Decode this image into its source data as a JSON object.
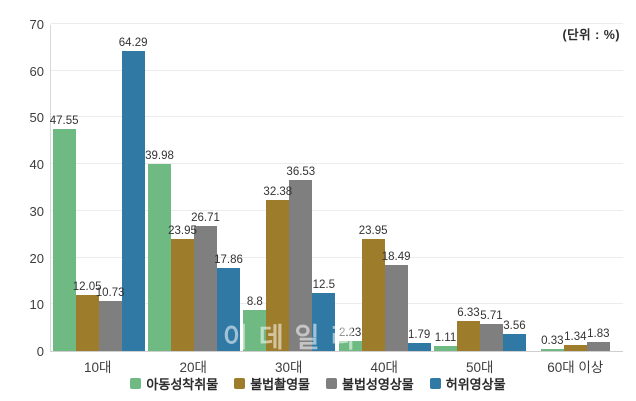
{
  "unit_label": "(단위 : %)",
  "watermark": "이데일리",
  "chart_data": {
    "type": "bar",
    "title": "",
    "xlabel": "",
    "ylabel": "",
    "unit": "%",
    "ylim": [
      0,
      70
    ],
    "yticks": [
      0,
      10,
      20,
      30,
      40,
      50,
      60,
      70
    ],
    "grid": true,
    "legend_position": "bottom",
    "categories": [
      "10대",
      "20대",
      "30대",
      "40대",
      "50대",
      "60대 이상"
    ],
    "series": [
      {
        "name": "아동성착취물",
        "color": "#6eba82",
        "values": [
          47.55,
          39.98,
          8.8,
          2.23,
          1.11,
          0.33
        ]
      },
      {
        "name": "불법촬영물",
        "color": "#9d7c2c",
        "values": [
          12.05,
          23.95,
          32.38,
          23.95,
          6.33,
          1.34
        ]
      },
      {
        "name": "불법성영상물",
        "color": "#7f7f7f",
        "values": [
          10.73,
          26.71,
          36.53,
          18.49,
          5.71,
          1.83
        ]
      },
      {
        "name": "허위영상물",
        "color": "#2f79a4",
        "values": [
          64.29,
          17.86,
          12.5,
          1.79,
          3.56,
          null
        ]
      }
    ]
  }
}
